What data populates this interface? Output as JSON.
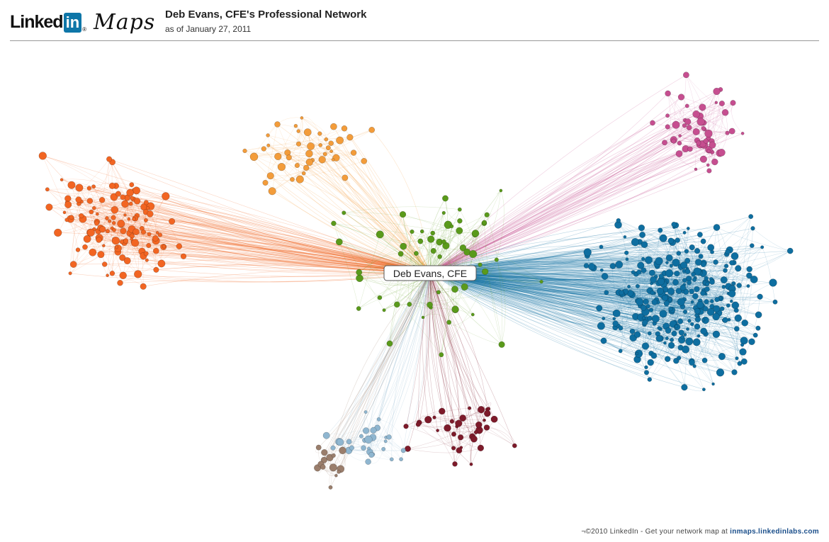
{
  "header": {
    "logo_linked": "Linked",
    "logo_in": "in",
    "logo_maps": "Maps",
    "title": "Deb Evans, CFE's Professional Network",
    "subtitle": "as of January 27, 2011"
  },
  "graph": {
    "center_label": "Deb Evans, CFE",
    "clusters": [
      {
        "name": "orange",
        "color": "#f26522",
        "node_count": 130
      },
      {
        "name": "light-orange",
        "color": "#f39c3a",
        "node_count": 45
      },
      {
        "name": "pink",
        "color": "#c64e90",
        "node_count": 60
      },
      {
        "name": "blue",
        "color": "#0e6ea0",
        "node_count": 320
      },
      {
        "name": "green",
        "color": "#5a9a1b",
        "node_count": 60
      },
      {
        "name": "maroon",
        "color": "#7d1a2a",
        "node_count": 35
      },
      {
        "name": "light-blue",
        "color": "#8fb6d0",
        "node_count": 30
      },
      {
        "name": "taupe",
        "color": "#9a7e6c",
        "node_count": 14
      }
    ]
  },
  "footer": {
    "text": "¬©2010 LinkedIn - Get your network map at",
    "link": "inmaps.linkedinlabs.com"
  }
}
